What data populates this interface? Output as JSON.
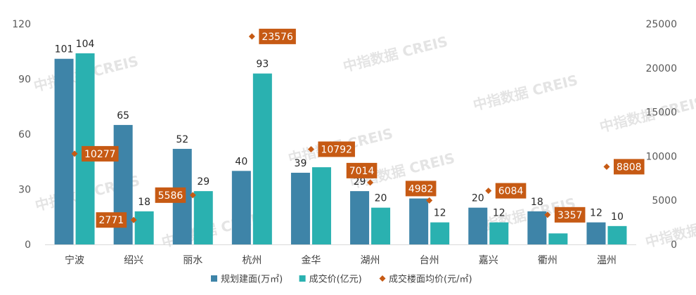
{
  "watermark": "中指数据 CREIS",
  "chart_data": {
    "type": "bar",
    "categories": [
      "宁波",
      "绍兴",
      "丽水",
      "杭州",
      "金华",
      "湖州",
      "台州",
      "嘉兴",
      "衢州",
      "温州"
    ],
    "series": [
      {
        "name": "规划建面(万㎡)",
        "kind": "bar",
        "axis": "left",
        "color": "#3e84a8",
        "values": [
          101,
          65,
          52,
          40,
          39,
          29,
          25,
          20,
          18,
          12
        ],
        "labels": [
          "101",
          "65",
          "52",
          "40",
          "39",
          "29",
          "",
          "20",
          "18",
          "12"
        ]
      },
      {
        "name": "成交价(亿元)",
        "kind": "bar",
        "axis": "left",
        "color": "#2ab1b0",
        "values": [
          104,
          18,
          29,
          93,
          42,
          20,
          12,
          12,
          6,
          10
        ],
        "labels": [
          "104",
          "18",
          "29",
          "93",
          "",
          "20",
          "12",
          "12",
          "",
          "10"
        ]
      },
      {
        "name": "成交楼面均价(元/㎡)",
        "kind": "scatter",
        "axis": "right",
        "color": "#c65a14",
        "values": [
          10277,
          2771,
          5586,
          23576,
          10792,
          7014,
          4982,
          6084,
          3357,
          8808
        ],
        "labels": [
          "10277",
          "2771",
          "5586",
          "23576",
          "10792",
          "7014",
          "4982",
          "6084",
          "3357",
          "8808"
        ]
      }
    ],
    "y_left": {
      "min": 0,
      "max": 120,
      "ticks": [
        "0",
        "30",
        "60",
        "90",
        "120"
      ]
    },
    "y_right": {
      "min": 0,
      "max": 25000,
      "ticks": [
        "0",
        "5000",
        "10000",
        "15000",
        "20000",
        "25000"
      ]
    },
    "legend_position": "bottom",
    "grid": false
  }
}
